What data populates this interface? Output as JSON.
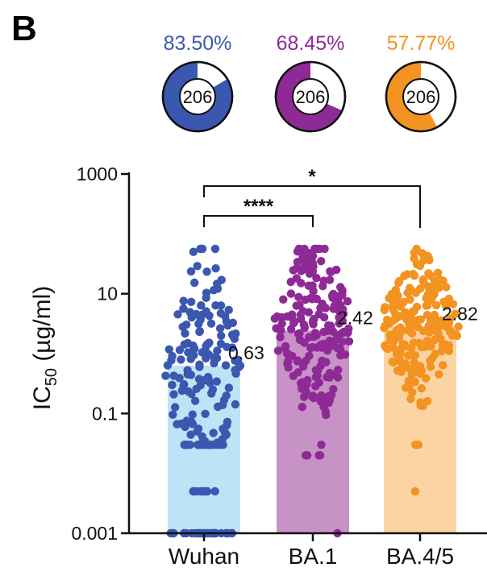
{
  "panel_label": "B",
  "donuts": [
    {
      "percent_label": "83.50%",
      "fraction": 0.835,
      "count": "206",
      "color": "#3a58b0"
    },
    {
      "percent_label": "68.45%",
      "fraction": 0.6845,
      "count": "206",
      "color": "#8e2a96"
    },
    {
      "percent_label": "57.77%",
      "fraction": 0.5777,
      "count": "206",
      "color": "#f39322"
    }
  ],
  "chart_data": {
    "type": "bar",
    "scale": "log",
    "categories": [
      "Wuhan",
      "BA.1",
      "BA.4/5"
    ],
    "values": [
      0.63,
      2.42,
      2.82
    ],
    "value_labels": [
      "0.63",
      "2.42",
      "2.82"
    ],
    "ylabel_main": "IC",
    "ylabel_sub": "50",
    "ylabel_unit": " (µg/ml)",
    "ylim": [
      0.001,
      1000
    ],
    "yticks": [
      {
        "label": "1000",
        "value": 1000
      },
      {
        "label": "10",
        "value": 10
      },
      {
        "label": "0.1",
        "value": 0.1
      },
      {
        "label": "0.001",
        "value": 0.001
      }
    ],
    "bar_colors": [
      "#bfe3f6",
      "#c792c6",
      "#fcd4a4"
    ],
    "point_colors": [
      "#3a58b0",
      "#8e2a96",
      "#f39322"
    ],
    "n_points_per_group": 206,
    "comparisons": [
      {
        "from": "Wuhan",
        "to": "BA.1",
        "label": "****"
      },
      {
        "from": "Wuhan",
        "to": "BA.4/5",
        "label": "*"
      }
    ],
    "grid": false,
    "legend": "none"
  }
}
